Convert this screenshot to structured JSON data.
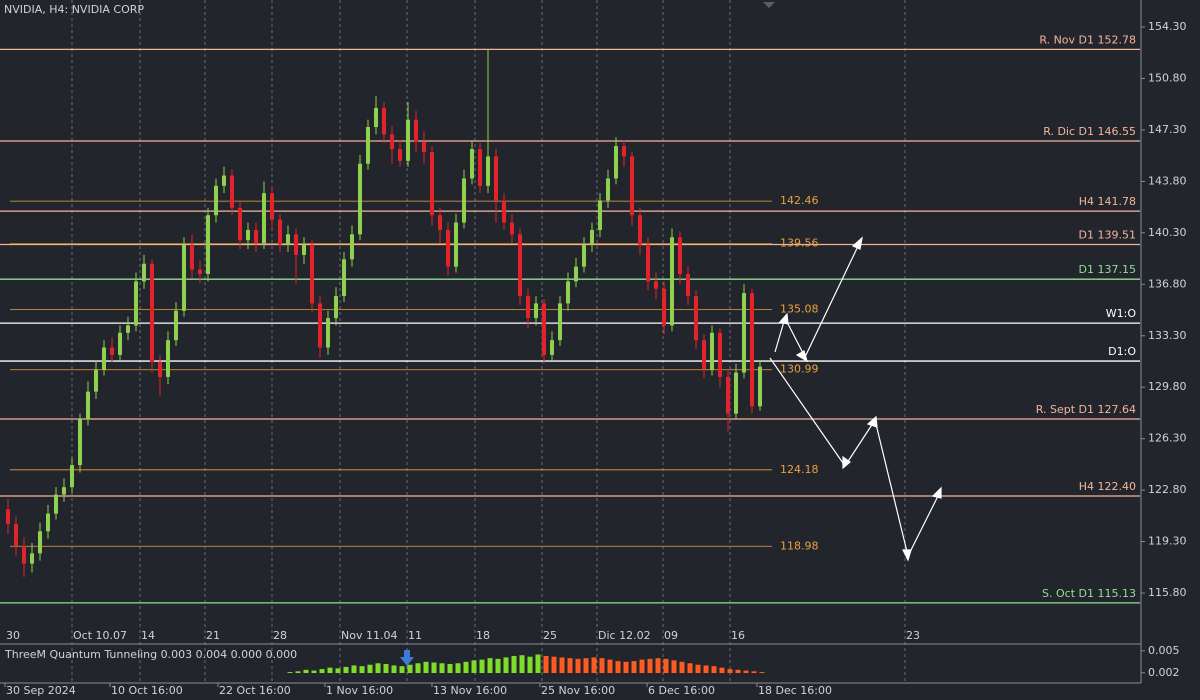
{
  "header": {
    "title": "NVIDIA, H4: NVIDIA CORP"
  },
  "chart_data": {
    "type": "candlestick",
    "up_color": "#8fd14f",
    "down_color": "#e3232b",
    "ylim": [
      112.4,
      156.14
    ],
    "yticks": [
      {
        "value": 154.3,
        "label": "154.30"
      },
      {
        "value": 150.8,
        "label": "150.80"
      },
      {
        "value": 147.3,
        "label": "147.30"
      },
      {
        "value": 143.8,
        "label": "143.80"
      },
      {
        "value": 140.3,
        "label": "140.30"
      },
      {
        "value": 136.8,
        "label": "136.80"
      },
      {
        "value": 133.3,
        "label": "133.30"
      },
      {
        "value": 129.8,
        "label": "129.80"
      },
      {
        "value": 126.3,
        "label": "126.30"
      },
      {
        "value": 122.8,
        "label": "122.80"
      },
      {
        "value": 119.3,
        "label": "119.30"
      },
      {
        "value": 115.8,
        "label": "115.80"
      }
    ],
    "x_labels_top": [
      "30",
      "Oct 10.07",
      "14",
      "21",
      "28",
      "Nov 11.04",
      "11",
      "18",
      "25",
      "Dic 12.02",
      "09",
      "16",
      "23"
    ],
    "x_labels_bottom": [
      "30 Sep 2024",
      "10 Oct 16:00",
      "22 Oct 16:00",
      "1 Nov 16:00",
      "13 Nov 16:00",
      "25 Nov 16:00",
      "6 Dec 16:00",
      "18 Dec 16:00"
    ],
    "levels": [
      {
        "label": "R. Nov D1 152.78",
        "value": 152.78,
        "color": "#f4b49a"
      },
      {
        "label": "R. Dic D1 146.55",
        "value": 146.55,
        "color": "#f4b49a"
      },
      {
        "label": "H4 141.78",
        "value": 141.78,
        "color": "#f4b49a"
      },
      {
        "label": "D1 139.51",
        "value": 139.51,
        "color": "#f4b49a"
      },
      {
        "label": "D1 137.15",
        "value": 137.15,
        "color": "#8fe08f"
      },
      {
        "label": "W1:O",
        "value": 134.16,
        "color": "#ffffff"
      },
      {
        "label": "D1:O",
        "value": 131.58,
        "color": "#ffffff"
      },
      {
        "label": "R. Sept D1 127.64",
        "value": 127.64,
        "color": "#f4b49a"
      },
      {
        "label": "H4 122.40",
        "value": 122.4,
        "color": "#f4b49a"
      },
      {
        "label": "S. Oct D1 115.13",
        "value": 115.13,
        "color": "#8fe08f"
      }
    ],
    "pivots": [
      142.46,
      139.56,
      135.08,
      130.99,
      124.18,
      118.98
    ],
    "pivot_color": "#e8a33d",
    "ohlc": [
      [
        121.5,
        122.2,
        119.8,
        120.5
      ],
      [
        120.5,
        121.0,
        118.3,
        119.0
      ],
      [
        119.0,
        119.6,
        116.9,
        117.8
      ],
      [
        117.8,
        119.2,
        117.2,
        118.5
      ],
      [
        118.5,
        120.6,
        118.0,
        120.0
      ],
      [
        120.0,
        121.8,
        119.5,
        121.2
      ],
      [
        121.2,
        123.0,
        120.8,
        122.5
      ],
      [
        122.5,
        123.6,
        122.0,
        123.0
      ],
      [
        123.0,
        125.0,
        122.6,
        124.5
      ],
      [
        124.5,
        128.0,
        124.0,
        127.6
      ],
      [
        127.6,
        130.2,
        127.2,
        129.5
      ],
      [
        129.5,
        131.6,
        129.0,
        131.0
      ],
      [
        131.0,
        133.0,
        130.6,
        132.5
      ],
      [
        132.5,
        133.2,
        131.5,
        132.0
      ],
      [
        132.0,
        134.0,
        131.6,
        133.5
      ],
      [
        133.5,
        134.6,
        133.0,
        134.0
      ],
      [
        134.0,
        137.6,
        133.6,
        137.0
      ],
      [
        137.0,
        138.8,
        136.5,
        138.2
      ],
      [
        138.2,
        138.5,
        130.8,
        131.5
      ],
      [
        131.5,
        132.0,
        129.2,
        130.5
      ],
      [
        130.5,
        133.6,
        130.0,
        133.0
      ],
      [
        133.0,
        135.6,
        132.6,
        135.0
      ],
      [
        135.0,
        140.0,
        134.6,
        139.5
      ],
      [
        139.5,
        140.2,
        137.2,
        137.8
      ],
      [
        137.8,
        138.4,
        136.9,
        137.5
      ],
      [
        137.5,
        142.0,
        137.0,
        141.5
      ],
      [
        141.5,
        144.0,
        141.0,
        143.5
      ],
      [
        143.5,
        144.8,
        143.0,
        144.2
      ],
      [
        144.2,
        144.6,
        141.5,
        142.0
      ],
      [
        142.0,
        142.4,
        139.2,
        139.8
      ],
      [
        139.8,
        141.0,
        139.2,
        140.5
      ],
      [
        140.5,
        141.0,
        139.0,
        139.6
      ],
      [
        139.6,
        143.8,
        139.2,
        143.0
      ],
      [
        143.0,
        143.4,
        140.6,
        141.2
      ],
      [
        141.2,
        141.6,
        139.0,
        139.5
      ],
      [
        139.5,
        140.8,
        139.0,
        140.2
      ],
      [
        140.2,
        140.6,
        136.8,
        138.8
      ],
      [
        138.8,
        140.0,
        138.2,
        139.5
      ],
      [
        139.5,
        139.8,
        134.9,
        135.5
      ],
      [
        135.5,
        136.0,
        131.8,
        132.5
      ],
      [
        132.5,
        135.0,
        132.0,
        134.5
      ],
      [
        134.5,
        136.6,
        134.0,
        136.0
      ],
      [
        136.0,
        139.0,
        135.6,
        138.5
      ],
      [
        138.5,
        140.8,
        138.0,
        140.2
      ],
      [
        140.2,
        145.6,
        139.8,
        145.0
      ],
      [
        145.0,
        148.0,
        144.6,
        147.5
      ],
      [
        147.5,
        149.6,
        147.0,
        148.8
      ],
      [
        148.8,
        149.2,
        146.4,
        147.0
      ],
      [
        147.0,
        147.6,
        145.0,
        146.0
      ],
      [
        146.0,
        146.6,
        144.8,
        145.2
      ],
      [
        145.2,
        149.2,
        144.8,
        148.0
      ],
      [
        148.0,
        148.6,
        145.8,
        146.5
      ],
      [
        146.5,
        147.2,
        145.0,
        145.8
      ],
      [
        145.8,
        146.2,
        140.8,
        141.5
      ],
      [
        141.5,
        142.0,
        139.6,
        140.5
      ],
      [
        140.5,
        141.0,
        137.4,
        138.0
      ],
      [
        138.0,
        141.6,
        137.6,
        141.0
      ],
      [
        141.0,
        144.6,
        140.6,
        144.0
      ],
      [
        144.0,
        146.6,
        143.6,
        146.0
      ],
      [
        146.0,
        146.4,
        143.0,
        143.5
      ],
      [
        143.5,
        152.78,
        143.0,
        145.5
      ],
      [
        145.5,
        146.0,
        141.0,
        142.5
      ],
      [
        142.5,
        143.0,
        140.5,
        141.0
      ],
      [
        141.0,
        141.6,
        139.6,
        140.2
      ],
      [
        140.2,
        140.6,
        135.4,
        136.0
      ],
      [
        136.0,
        136.5,
        133.8,
        134.5
      ],
      [
        134.5,
        136.0,
        134.0,
        135.5
      ],
      [
        135.5,
        135.8,
        131.4,
        132.0
      ],
      [
        132.0,
        133.6,
        131.6,
        133.0
      ],
      [
        133.0,
        136.0,
        132.6,
        135.5
      ],
      [
        135.5,
        137.6,
        135.0,
        137.0
      ],
      [
        137.0,
        138.6,
        136.6,
        138.0
      ],
      [
        138.0,
        140.0,
        137.6,
        139.5
      ],
      [
        139.5,
        141.0,
        139.0,
        140.5
      ],
      [
        140.5,
        143.0,
        140.0,
        142.5
      ],
      [
        142.5,
        144.6,
        142.0,
        144.0
      ],
      [
        144.0,
        146.8,
        143.6,
        146.2
      ],
      [
        146.2,
        146.6,
        144.8,
        145.5
      ],
      [
        145.5,
        145.8,
        140.8,
        141.5
      ],
      [
        141.5,
        142.0,
        138.8,
        139.5
      ],
      [
        139.5,
        140.0,
        136.4,
        137.0
      ],
      [
        137.0,
        137.6,
        135.8,
        136.5
      ],
      [
        136.5,
        137.0,
        133.4,
        134.0
      ],
      [
        134.0,
        140.6,
        133.6,
        140.0
      ],
      [
        140.0,
        140.4,
        136.8,
        137.5
      ],
      [
        137.5,
        138.0,
        135.4,
        136.0
      ],
      [
        136.0,
        136.4,
        132.4,
        133.0
      ],
      [
        133.0,
        133.4,
        130.4,
        131.0
      ],
      [
        131.0,
        134.0,
        130.6,
        133.5
      ],
      [
        133.5,
        133.8,
        129.8,
        130.5
      ],
      [
        130.5,
        131.0,
        126.8,
        128.0
      ],
      [
        128.0,
        131.4,
        127.6,
        130.8
      ],
      [
        130.8,
        136.8,
        130.4,
        136.2
      ],
      [
        136.2,
        136.5,
        128.0,
        128.5
      ],
      [
        128.5,
        131.6,
        128.2,
        131.2
      ]
    ]
  },
  "indicator": {
    "type": "bar",
    "title": "ThreeM Quantum Tunneling 0.003 0.004 0.000 0.000",
    "ylim": [
      0.0006,
      0.0058
    ],
    "yticks": [
      0.005,
      0.002
    ],
    "series": [
      {
        "color": "#7fdd2a",
        "values": [
          0.0021,
          0.0022,
          0.0024,
          0.0023,
          0.0025,
          0.0027,
          0.0026,
          0.0028,
          0.003,
          0.0029,
          0.0031,
          0.0033,
          0.0032,
          0.003,
          0.0029,
          0.0031,
          0.0033,
          0.0035,
          0.0034,
          0.0033,
          0.0032,
          0.0033,
          0.0035,
          0.0037,
          0.0038,
          0.004,
          0.0039,
          0.0041,
          0.0043,
          0.0044,
          0.0042,
          0.0045,
          null,
          null,
          null,
          null,
          null,
          null,
          null,
          null,
          null,
          null,
          null,
          null,
          null,
          null,
          null,
          null,
          null,
          null,
          null,
          null,
          null,
          null,
          null,
          null,
          null,
          null,
          null,
          null
        ]
      },
      {
        "color": "#ff5a1f",
        "values": [
          null,
          null,
          null,
          null,
          null,
          null,
          null,
          null,
          null,
          null,
          null,
          null,
          null,
          null,
          null,
          null,
          null,
          null,
          null,
          null,
          null,
          null,
          null,
          null,
          null,
          null,
          null,
          null,
          null,
          null,
          null,
          null,
          0.0043,
          0.0042,
          0.0041,
          0.004,
          0.0039,
          0.004,
          0.0041,
          0.004,
          0.0038,
          0.0036,
          0.0035,
          0.0036,
          0.0038,
          0.0039,
          0.004,
          0.0039,
          0.0037,
          0.0035,
          0.0033,
          0.0031,
          0.003,
          0.0029,
          0.0027,
          0.0025,
          0.0024,
          0.0023,
          0.0022,
          0.0021
        ]
      }
    ]
  }
}
